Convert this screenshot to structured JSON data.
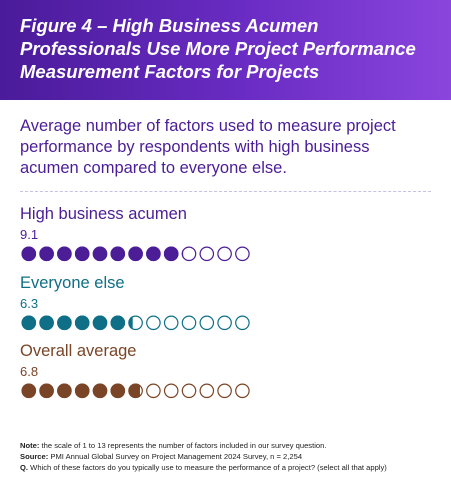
{
  "chart_data": {
    "type": "dots",
    "title": "Figure 4 – High Business Acumen Professionals Use More Project Performance Measurement Factors for Projects",
    "subtitle": "Average number of factors used to measure project performance by respondents with high business acumen compared to everyone else.",
    "xlim": [
      0,
      13
    ],
    "series": [
      {
        "name": "High business acumen",
        "color": "#4b1d96",
        "values": [
          9.1
        ]
      },
      {
        "name": "Everyone else",
        "color": "#0f6f86",
        "values": [
          6.3
        ]
      },
      {
        "name": "Overall average",
        "color": "#7a4526",
        "values": [
          6.8
        ]
      }
    ],
    "notes": [
      {
        "label": "Note:",
        "text": "the scale of 1 to 13 represents the number of factors included in our survey question."
      },
      {
        "label": "Source:",
        "text": "PMI Annual Global Survey on Project Management 2024 Survey, n = 2,254"
      },
      {
        "label": "Q.",
        "text": "Which of these factors do you typically use to measure the performance of a project? (select all that apply)"
      }
    ]
  }
}
